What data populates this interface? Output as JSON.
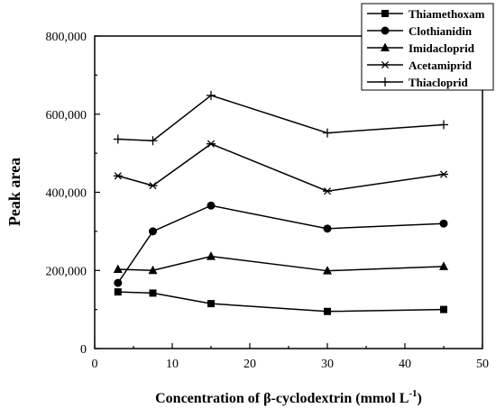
{
  "chart_data": {
    "type": "line",
    "xlabel_main": "Concentration of β-cyclodextrin (mmol L",
    "xlabel_sup": "-1",
    "xlabel_close": ")",
    "ylabel": "Peak area",
    "xlim": [
      0,
      50
    ],
    "ylim": [
      0,
      800000
    ],
    "x_ticks": [
      0,
      10,
      20,
      30,
      40,
      50
    ],
    "x_tick_labels": [
      "0",
      "10",
      "20",
      "30",
      "40",
      "50"
    ],
    "y_ticks": [
      0,
      200000,
      400000,
      600000,
      800000
    ],
    "y_tick_labels": [
      "0",
      "200,000",
      "400,000",
      "600,000",
      "800,000"
    ],
    "grid": false,
    "legend_position": "top-right",
    "x": [
      3,
      7.5,
      15,
      30,
      45
    ],
    "series": [
      {
        "name": "Thiamethoxam",
        "marker": "square",
        "values": [
          145000,
          142000,
          115000,
          95000,
          100000
        ]
      },
      {
        "name": "Clothianidin",
        "marker": "circle",
        "values": [
          168000,
          300000,
          366000,
          307000,
          320000
        ]
      },
      {
        "name": "Imidacloprid",
        "marker": "triangle",
        "values": [
          203000,
          200000,
          236000,
          199000,
          210000
        ]
      },
      {
        "name": "Acetamiprid",
        "marker": "asterisk",
        "values": [
          442000,
          417000,
          524000,
          403000,
          446000
        ]
      },
      {
        "name": "Thiacloprid",
        "marker": "plus",
        "values": [
          536000,
          532000,
          648000,
          552000,
          573000
        ]
      }
    ]
  }
}
